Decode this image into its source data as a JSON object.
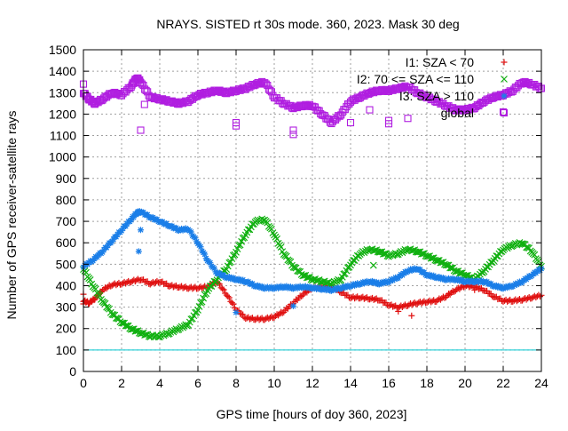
{
  "chart_data": {
    "type": "scatter",
    "title": "NRAYS. SISTED rt 30s mode. 360, 2023. Mask 30 deg",
    "xlabel": "GPS time [hours of doy 360, 2023]",
    "ylabel": "Number of GPS receiver-satellite rays",
    "xlim": [
      0,
      24
    ],
    "ylim": [
      0,
      1500
    ],
    "xticks": [
      "0",
      "2",
      "4",
      "6",
      "8",
      "10",
      "12",
      "14",
      "16",
      "18",
      "20",
      "22",
      "24"
    ],
    "yticks": [
      "0",
      "100",
      "200",
      "300",
      "400",
      "500",
      "600",
      "700",
      "800",
      "900",
      "1000",
      "1100",
      "1200",
      "1300",
      "1400",
      "1500"
    ],
    "grid": true,
    "legend_position": "top-right",
    "threshold_line": {
      "y": 100,
      "color": "#00c8d0"
    },
    "series": [
      {
        "name": "I1: SZA < 70",
        "marker": "+",
        "color": "#e01010",
        "points": [
          [
            0,
            330
          ],
          [
            0.3,
            320
          ],
          [
            0.6,
            340
          ],
          [
            1,
            380
          ],
          [
            1.5,
            405
          ],
          [
            2,
            410
          ],
          [
            2.5,
            420
          ],
          [
            3,
            430
          ],
          [
            3.5,
            410
          ],
          [
            4,
            420
          ],
          [
            4.5,
            400
          ],
          [
            5,
            395
          ],
          [
            5.5,
            390
          ],
          [
            6,
            390
          ],
          [
            6.5,
            395
          ],
          [
            7,
            420
          ],
          [
            7.5,
            360
          ],
          [
            8,
            290
          ],
          [
            8.5,
            250
          ],
          [
            9,
            245
          ],
          [
            9.5,
            245
          ],
          [
            10,
            255
          ],
          [
            10.5,
            280
          ],
          [
            11,
            320
          ],
          [
            11.5,
            360
          ],
          [
            12,
            390
          ],
          [
            12.5,
            395
          ],
          [
            13,
            395
          ],
          [
            13.5,
            370
          ],
          [
            14,
            345
          ],
          [
            14.5,
            345
          ],
          [
            15,
            340
          ],
          [
            15.5,
            335
          ],
          [
            16,
            310
          ],
          [
            16.5,
            300
          ],
          [
            17,
            310
          ],
          [
            17.5,
            320
          ],
          [
            18,
            325
          ],
          [
            18.5,
            330
          ],
          [
            19,
            350
          ],
          [
            19.5,
            380
          ],
          [
            20,
            400
          ],
          [
            20.5,
            395
          ],
          [
            21,
            380
          ],
          [
            21.5,
            350
          ],
          [
            22,
            330
          ],
          [
            22.5,
            330
          ],
          [
            23,
            335
          ],
          [
            23.5,
            345
          ],
          [
            24,
            355
          ]
        ],
        "outliers": [
          [
            0,
            360
          ],
          [
            0,
            315
          ],
          [
            16.5,
            280
          ],
          [
            17.2,
            260
          ],
          [
            20.5,
            380
          ]
        ]
      },
      {
        "name": "I2: 70 <= SZA <= 110",
        "marker": "x",
        "color": "#10b010",
        "points": [
          [
            0,
            480
          ],
          [
            0.5,
            400
          ],
          [
            1,
            330
          ],
          [
            1.5,
            270
          ],
          [
            2,
            230
          ],
          [
            2.5,
            200
          ],
          [
            3,
            180
          ],
          [
            3.5,
            165
          ],
          [
            4,
            165
          ],
          [
            4.5,
            180
          ],
          [
            5,
            200
          ],
          [
            5.5,
            220
          ],
          [
            6,
            290
          ],
          [
            6.5,
            380
          ],
          [
            7,
            430
          ],
          [
            7.5,
            480
          ],
          [
            8,
            560
          ],
          [
            8.5,
            640
          ],
          [
            9,
            700
          ],
          [
            9.5,
            710
          ],
          [
            10,
            640
          ],
          [
            10.5,
            550
          ],
          [
            11,
            490
          ],
          [
            11.5,
            450
          ],
          [
            12,
            430
          ],
          [
            12.5,
            420
          ],
          [
            13,
            410
          ],
          [
            13.5,
            430
          ],
          [
            14,
            500
          ],
          [
            14.5,
            550
          ],
          [
            15,
            570
          ],
          [
            15.5,
            560
          ],
          [
            16,
            540
          ],
          [
            16.5,
            550
          ],
          [
            17,
            570
          ],
          [
            17.5,
            560
          ],
          [
            18,
            540
          ],
          [
            18.5,
            520
          ],
          [
            19,
            500
          ],
          [
            19.5,
            470
          ],
          [
            20,
            450
          ],
          [
            20.5,
            430
          ],
          [
            21,
            470
          ],
          [
            21.5,
            520
          ],
          [
            22,
            570
          ],
          [
            22.5,
            590
          ],
          [
            23,
            600
          ],
          [
            23.5,
            560
          ],
          [
            24,
            490
          ]
        ],
        "outliers": [
          [
            15.2,
            495
          ]
        ]
      },
      {
        "name": "I3: SZA > 110",
        "marker": "*",
        "color": "#1a7ee8",
        "points": [
          [
            0,
            490
          ],
          [
            0.5,
            520
          ],
          [
            1,
            560
          ],
          [
            1.5,
            610
          ],
          [
            2,
            660
          ],
          [
            2.5,
            710
          ],
          [
            2.8,
            740
          ],
          [
            3,
            745
          ],
          [
            3.5,
            720
          ],
          [
            4,
            700
          ],
          [
            4.5,
            680
          ],
          [
            5,
            660
          ],
          [
            5.5,
            665
          ],
          [
            6,
            600
          ],
          [
            6.5,
            520
          ],
          [
            7,
            460
          ],
          [
            7.5,
            440
          ],
          [
            8,
            430
          ],
          [
            8.5,
            420
          ],
          [
            9,
            400
          ],
          [
            9.5,
            390
          ],
          [
            10,
            390
          ],
          [
            10.5,
            395
          ],
          [
            11,
            390
          ],
          [
            11.5,
            395
          ],
          [
            12,
            390
          ],
          [
            12.5,
            385
          ],
          [
            13,
            380
          ],
          [
            13.5,
            390
          ],
          [
            14,
            400
          ],
          [
            14.5,
            410
          ],
          [
            15,
            420
          ],
          [
            15.5,
            410
          ],
          [
            16,
            420
          ],
          [
            16.5,
            440
          ],
          [
            17,
            470
          ],
          [
            17.5,
            480
          ],
          [
            18,
            450
          ],
          [
            18.5,
            440
          ],
          [
            19,
            430
          ],
          [
            19.5,
            430
          ],
          [
            20,
            420
          ],
          [
            20.5,
            420
          ],
          [
            21,
            420
          ],
          [
            21.5,
            400
          ],
          [
            22,
            390
          ],
          [
            22.5,
            400
          ],
          [
            23,
            420
          ],
          [
            23.5,
            450
          ],
          [
            24,
            480
          ]
        ],
        "outliers": [
          [
            3,
            660
          ],
          [
            2.9,
            560
          ],
          [
            8,
            275
          ],
          [
            11,
            305
          ]
        ]
      },
      {
        "name": "global",
        "marker": "square",
        "color": "#b01ee0",
        "points": [
          [
            0,
            1300
          ],
          [
            0.3,
            1270
          ],
          [
            0.6,
            1250
          ],
          [
            1,
            1270
          ],
          [
            1.5,
            1300
          ],
          [
            2,
            1290
          ],
          [
            2.5,
            1330
          ],
          [
            2.8,
            1370
          ],
          [
            3,
            1350
          ],
          [
            3.5,
            1280
          ],
          [
            4,
            1270
          ],
          [
            4.5,
            1260
          ],
          [
            5,
            1250
          ],
          [
            5.5,
            1260
          ],
          [
            6,
            1290
          ],
          [
            6.5,
            1300
          ],
          [
            7,
            1310
          ],
          [
            7.5,
            1300
          ],
          [
            8,
            1310
          ],
          [
            8.5,
            1320
          ],
          [
            9,
            1340
          ],
          [
            9.5,
            1350
          ],
          [
            10,
            1280
          ],
          [
            10.5,
            1250
          ],
          [
            11,
            1230
          ],
          [
            11.5,
            1240
          ],
          [
            12,
            1240
          ],
          [
            12.5,
            1200
          ],
          [
            13,
            1160
          ],
          [
            13.5,
            1200
          ],
          [
            14,
            1260
          ],
          [
            14.5,
            1280
          ],
          [
            15,
            1300
          ],
          [
            15.5,
            1310
          ],
          [
            16,
            1310
          ],
          [
            16.5,
            1320
          ],
          [
            17,
            1330
          ],
          [
            17.5,
            1300
          ],
          [
            18,
            1280
          ],
          [
            18.5,
            1260
          ],
          [
            19,
            1240
          ],
          [
            19.5,
            1220
          ],
          [
            20,
            1220
          ],
          [
            20.5,
            1230
          ],
          [
            21,
            1260
          ],
          [
            21.5,
            1280
          ],
          [
            22,
            1290
          ],
          [
            22.5,
            1310
          ],
          [
            23,
            1350
          ],
          [
            23.5,
            1340
          ],
          [
            24,
            1320
          ]
        ],
        "outliers": [
          [
            0,
            1340
          ],
          [
            3,
            1125
          ],
          [
            3.2,
            1245
          ],
          [
            8,
            1160
          ],
          [
            8,
            1145
          ],
          [
            11,
            1125
          ],
          [
            11,
            1105
          ],
          [
            14,
            1160
          ],
          [
            15,
            1220
          ],
          [
            16,
            1170
          ],
          [
            16,
            1155
          ],
          [
            17,
            1180
          ],
          [
            22,
            1210
          ]
        ]
      }
    ]
  }
}
